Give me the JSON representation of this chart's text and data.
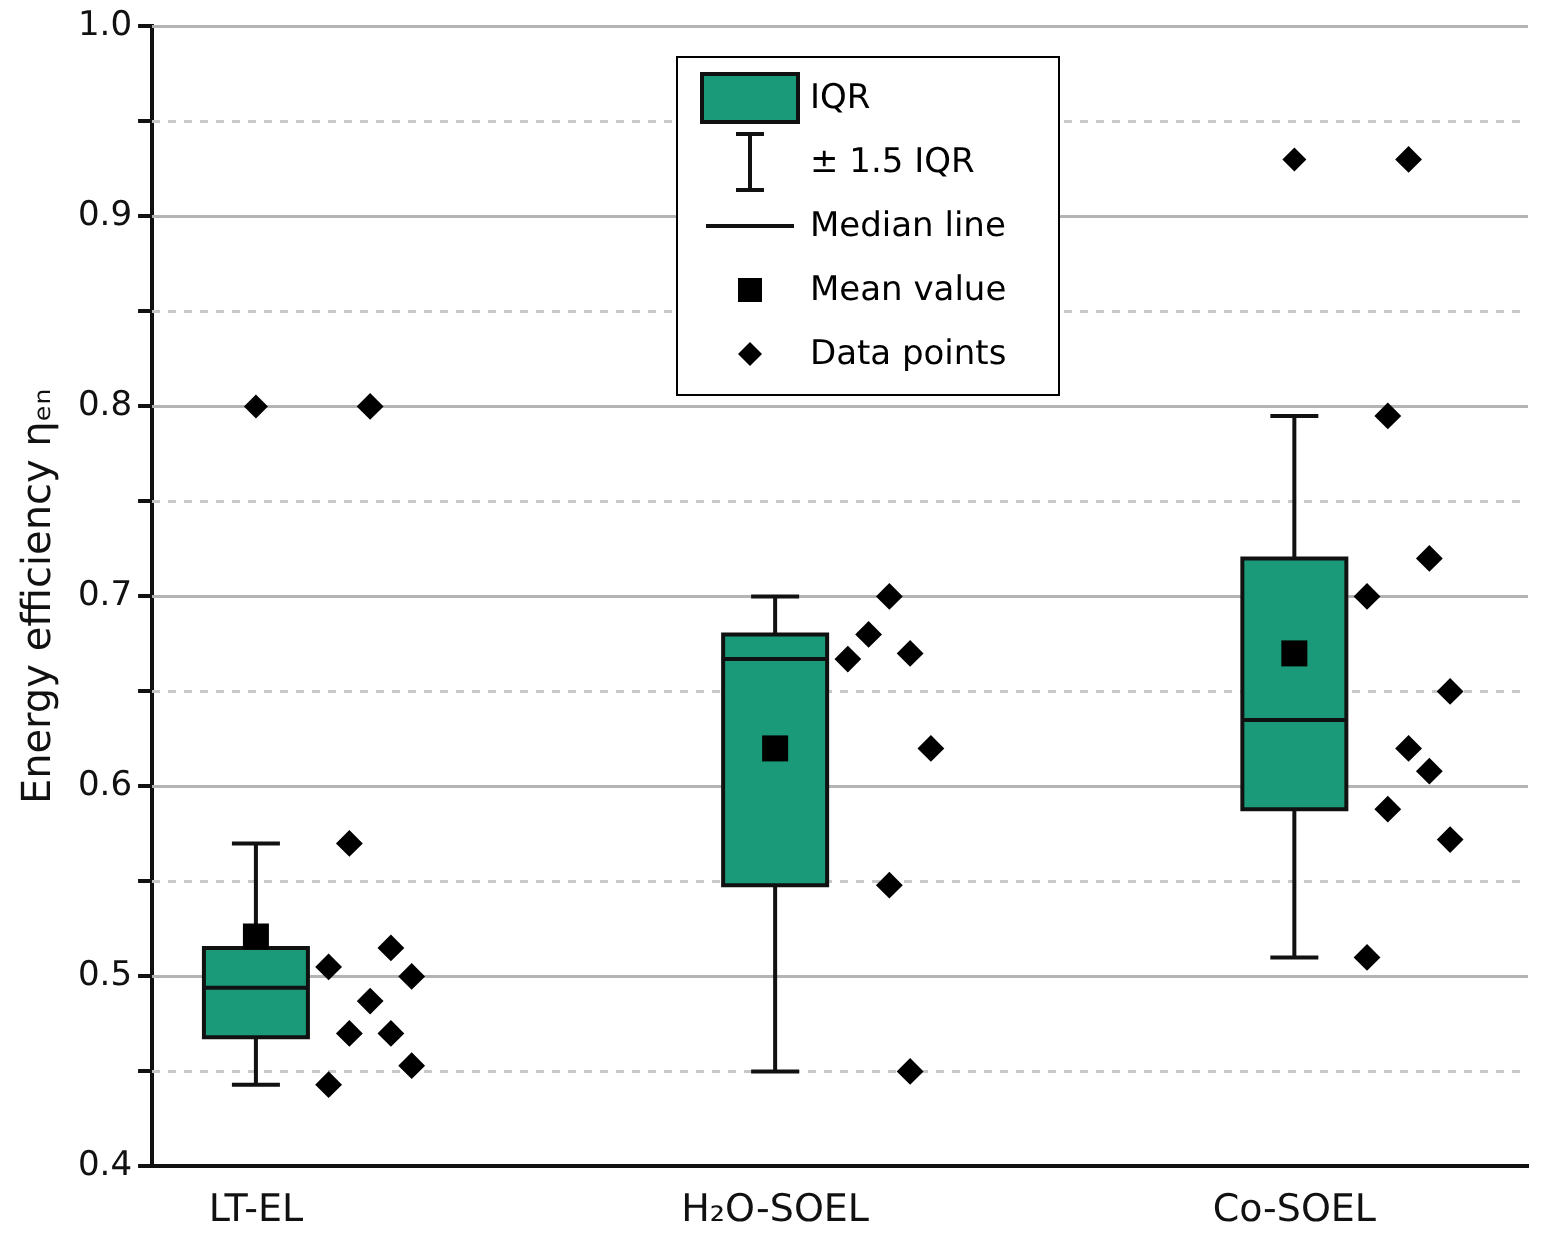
{
  "chart_data": {
    "type": "box",
    "categories": [
      "LT-EL",
      "H₂O-SOEL",
      "Co-SOEL"
    ],
    "ylabel": "Energy efficiency ηₑₙ",
    "ylim": [
      0.4,
      1.0
    ],
    "yticks": [
      0.4,
      {
        "value": 0.45,
        "label": null
      },
      0.5,
      {
        "value": 0.55,
        "label": null
      },
      0.6,
      {
        "value": 0.65,
        "label": null
      },
      0.7,
      {
        "value": 0.75,
        "label": null
      },
      0.8,
      {
        "value": 0.85,
        "label": null
      },
      0.9,
      {
        "value": 0.95,
        "label": null
      },
      {
        "value": 1.0,
        "label": "1.0"
      }
    ],
    "grid": true,
    "legend": "top",
    "marker": "diamond",
    "annotations": [
      "± 1.5 IQR",
      "Median line",
      "Mean value"
    ],
    "series": [
      {
        "name": "IQR",
        "color": "#1a9a78",
        "boxes": [
          {
            "low": 0.443,
            "q1": 0.468,
            "median": 0.494,
            "q3": 0.515,
            "high": 0.57,
            "mean": 0.521,
            "outliers": [
              0.8
            ]
          },
          {
            "low": 0.45,
            "q1": 0.548,
            "median": 0.667,
            "q3": 0.68,
            "high": 0.7,
            "mean": 0.62
          },
          {
            "low": 0.51,
            "q1": 0.588,
            "median": 0.635,
            "q3": 0.72,
            "high": 0.795,
            "mean": 0.67,
            "outliers": [
              0.93
            ]
          }
        ]
      },
      {
        "type": "scatter",
        "name": "Data points",
        "color": "#000000",
        "x": [
          "LT-EL",
          "LT-EL",
          "LT-EL",
          "LT-EL",
          "LT-EL",
          "LT-EL",
          "LT-EL",
          "LT-EL",
          "LT-EL",
          "LT-EL",
          "H₂O-SOEL",
          "H₂O-SOEL",
          "H₂O-SOEL",
          "H₂O-SOEL",
          "H₂O-SOEL",
          "H₂O-SOEL",
          "H₂O-SOEL",
          "Co-SOEL",
          "Co-SOEL",
          "Co-SOEL",
          "Co-SOEL",
          "Co-SOEL",
          "Co-SOEL",
          "Co-SOEL",
          "Co-SOEL",
          "Co-SOEL",
          "Co-SOEL"
        ],
        "values": [
          0.8,
          0.57,
          0.515,
          0.505,
          0.5,
          0.487,
          0.47,
          0.47,
          0.453,
          0.443,
          0.7,
          0.68,
          0.67,
          0.667,
          0.62,
          0.548,
          0.45,
          0.93,
          0.795,
          0.72,
          0.7,
          0.65,
          0.62,
          0.608,
          0.588,
          0.572,
          0.51
        ]
      }
    ]
  }
}
